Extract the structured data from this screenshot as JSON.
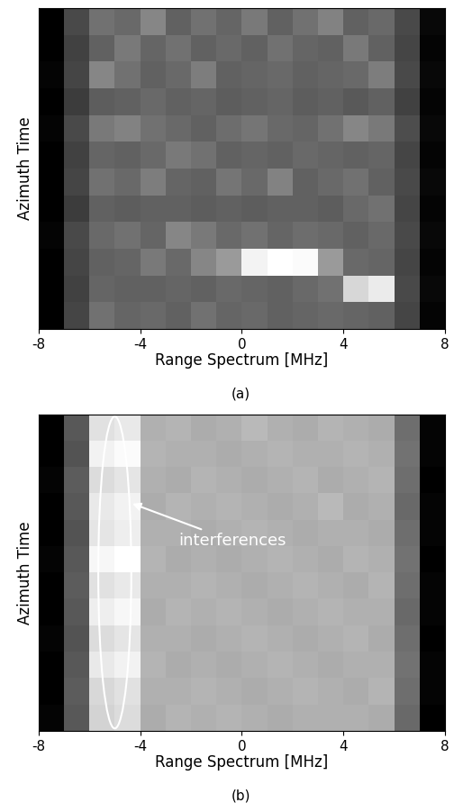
{
  "chart_data": [
    {
      "type": "heatmap",
      "label": "(a)",
      "x_label": "Range Spectrum [MHz]",
      "y_label": "Azimuth Time",
      "xlim": [
        -8,
        8
      ],
      "xticks": [
        -8,
        -4,
        0,
        4,
        8
      ],
      "tick_labels": "x",
      "x_bins": [
        -8,
        -7,
        -6,
        -5,
        -4,
        -3,
        -2,
        -1,
        0,
        1,
        2,
        3,
        4,
        5,
        6,
        7,
        8
      ],
      "cells": [
        [
          0.12,
          0.3,
          0.4,
          0.38,
          0.45,
          0.36,
          0.4,
          0.37,
          0.42,
          0.36,
          0.4,
          0.44,
          0.36,
          0.38,
          0.3,
          0.14
        ],
        [
          0.12,
          0.28,
          0.36,
          0.42,
          0.37,
          0.4,
          0.36,
          0.38,
          0.36,
          0.4,
          0.37,
          0.36,
          0.42,
          0.36,
          0.29,
          0.13
        ],
        [
          0.13,
          0.29,
          0.45,
          0.4,
          0.36,
          0.38,
          0.43,
          0.36,
          0.37,
          0.38,
          0.36,
          0.37,
          0.38,
          0.43,
          0.3,
          0.14
        ],
        [
          0.12,
          0.27,
          0.35,
          0.36,
          0.38,
          0.36,
          0.37,
          0.35,
          0.36,
          0.37,
          0.35,
          0.36,
          0.34,
          0.36,
          0.28,
          0.13
        ],
        [
          0.13,
          0.3,
          0.42,
          0.44,
          0.4,
          0.38,
          0.36,
          0.39,
          0.41,
          0.38,
          0.37,
          0.4,
          0.45,
          0.42,
          0.31,
          0.14
        ],
        [
          0.12,
          0.28,
          0.37,
          0.36,
          0.38,
          0.42,
          0.4,
          0.36,
          0.37,
          0.36,
          0.38,
          0.37,
          0.36,
          0.37,
          0.29,
          0.13
        ],
        [
          0.12,
          0.29,
          0.4,
          0.38,
          0.43,
          0.37,
          0.36,
          0.41,
          0.38,
          0.44,
          0.36,
          0.38,
          0.4,
          0.36,
          0.3,
          0.14
        ],
        [
          0.12,
          0.27,
          0.36,
          0.35,
          0.36,
          0.36,
          0.35,
          0.36,
          0.35,
          0.36,
          0.36,
          0.35,
          0.38,
          0.4,
          0.29,
          0.13
        ],
        [
          0.13,
          0.3,
          0.38,
          0.4,
          0.37,
          0.45,
          0.42,
          0.38,
          0.4,
          0.37,
          0.39,
          0.38,
          0.36,
          0.38,
          0.3,
          0.14
        ],
        [
          0.12,
          0.29,
          0.36,
          0.37,
          0.42,
          0.38,
          0.45,
          0.5,
          0.72,
          0.75,
          0.74,
          0.5,
          0.38,
          0.37,
          0.29,
          0.13
        ],
        [
          0.12,
          0.28,
          0.37,
          0.36,
          0.36,
          0.37,
          0.36,
          0.38,
          0.37,
          0.36,
          0.38,
          0.4,
          0.65,
          0.7,
          0.3,
          0.14
        ],
        [
          0.12,
          0.29,
          0.4,
          0.37,
          0.38,
          0.36,
          0.4,
          0.37,
          0.38,
          0.36,
          0.37,
          0.38,
          0.37,
          0.36,
          0.29,
          0.13
        ]
      ]
    },
    {
      "type": "heatmap",
      "label": "(b)",
      "x_label": "Range Spectrum [MHz]",
      "y_label": "Azimuth Time",
      "xlim": [
        -8,
        8
      ],
      "xticks": [
        -8,
        -4,
        0,
        4,
        8
      ],
      "tick_labels": "x",
      "x_bins": [
        -8,
        -7,
        -6,
        -5,
        -4,
        -3,
        -2,
        -1,
        0,
        1,
        2,
        3,
        4,
        5,
        6,
        7,
        8
      ],
      "annotations": [
        {
          "text": "interferences",
          "x": -5
        }
      ],
      "cells": [
        [
          0.05,
          0.25,
          0.56,
          0.58,
          0.45,
          0.46,
          0.44,
          0.45,
          0.47,
          0.45,
          0.44,
          0.46,
          0.45,
          0.44,
          0.3,
          0.06
        ],
        [
          0.05,
          0.24,
          0.6,
          0.62,
          0.46,
          0.45,
          0.45,
          0.44,
          0.45,
          0.46,
          0.45,
          0.45,
          0.46,
          0.45,
          0.31,
          0.06
        ],
        [
          0.06,
          0.26,
          0.55,
          0.57,
          0.45,
          0.44,
          0.46,
          0.45,
          0.44,
          0.45,
          0.46,
          0.44,
          0.45,
          0.46,
          0.3,
          0.05
        ],
        [
          0.05,
          0.25,
          0.58,
          0.6,
          0.44,
          0.46,
          0.45,
          0.46,
          0.45,
          0.44,
          0.45,
          0.47,
          0.44,
          0.45,
          0.29,
          0.06
        ],
        [
          0.05,
          0.24,
          0.57,
          0.59,
          0.45,
          0.45,
          0.44,
          0.45,
          0.46,
          0.45,
          0.44,
          0.45,
          0.45,
          0.44,
          0.3,
          0.06
        ],
        [
          0.06,
          0.25,
          0.61,
          0.63,
          0.46,
          0.44,
          0.45,
          0.44,
          0.45,
          0.46,
          0.45,
          0.44,
          0.46,
          0.45,
          0.31,
          0.05
        ],
        [
          0.05,
          0.26,
          0.56,
          0.58,
          0.45,
          0.45,
          0.46,
          0.45,
          0.44,
          0.45,
          0.46,
          0.45,
          0.44,
          0.46,
          0.3,
          0.06
        ],
        [
          0.05,
          0.25,
          0.59,
          0.61,
          0.44,
          0.46,
          0.45,
          0.46,
          0.45,
          0.44,
          0.45,
          0.46,
          0.45,
          0.45,
          0.29,
          0.06
        ],
        [
          0.06,
          0.24,
          0.55,
          0.57,
          0.45,
          0.45,
          0.44,
          0.45,
          0.46,
          0.45,
          0.44,
          0.45,
          0.46,
          0.44,
          0.3,
          0.05
        ],
        [
          0.05,
          0.25,
          0.58,
          0.6,
          0.46,
          0.44,
          0.45,
          0.44,
          0.45,
          0.46,
          0.45,
          0.44,
          0.45,
          0.45,
          0.31,
          0.06
        ],
        [
          0.05,
          0.26,
          0.54,
          0.56,
          0.45,
          0.45,
          0.46,
          0.45,
          0.44,
          0.45,
          0.46,
          0.45,
          0.44,
          0.46,
          0.3,
          0.06
        ],
        [
          0.06,
          0.25,
          0.53,
          0.55,
          0.44,
          0.46,
          0.45,
          0.46,
          0.45,
          0.44,
          0.45,
          0.45,
          0.45,
          0.44,
          0.29,
          0.05
        ]
      ]
    }
  ]
}
